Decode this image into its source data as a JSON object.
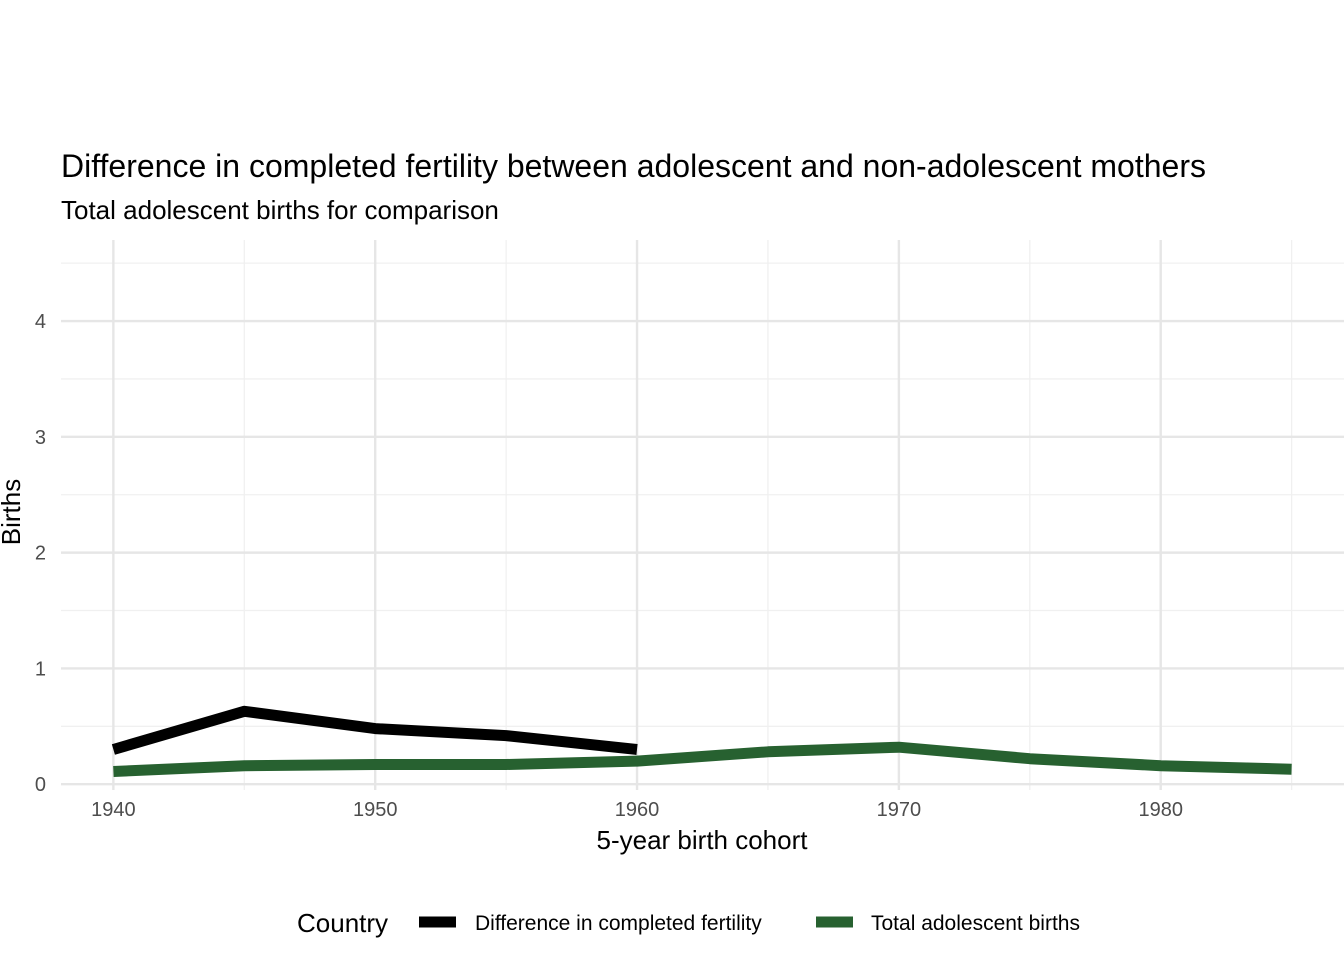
{
  "chart_data": {
    "type": "line",
    "title": "Difference in completed fertility between adolescent and non-adolescent mothers",
    "subtitle": "Total adolescent births for comparison",
    "xlabel": "5-year birth cohort",
    "ylabel": "Births",
    "xlim": [
      1938,
      1987
    ],
    "ylim": [
      -0.05,
      4.7
    ],
    "x_ticks": [
      1940,
      1950,
      1960,
      1970,
      1980
    ],
    "x_minor_ticks": [
      1945,
      1955,
      1965,
      1975,
      1985
    ],
    "y_ticks": [
      0,
      1,
      2,
      3,
      4
    ],
    "y_minor_ticks": [
      0.5,
      1.5,
      2.5,
      3.5,
      4.5
    ],
    "grid": true,
    "legend": {
      "title": "Country",
      "position": "bottom"
    },
    "series": [
      {
        "name": "Difference in completed fertility",
        "color": "#000000",
        "x": [
          1940,
          1945,
          1950,
          1955,
          1960
        ],
        "y": [
          0.3,
          0.63,
          0.48,
          0.42,
          0.3
        ]
      },
      {
        "name": "Total adolescent births",
        "color": "#276130",
        "x": [
          1940,
          1945,
          1950,
          1955,
          1960,
          1965,
          1970,
          1975,
          1980,
          1985
        ],
        "y": [
          0.11,
          0.16,
          0.17,
          0.17,
          0.2,
          0.28,
          0.32,
          0.22,
          0.16,
          0.13
        ]
      }
    ]
  }
}
